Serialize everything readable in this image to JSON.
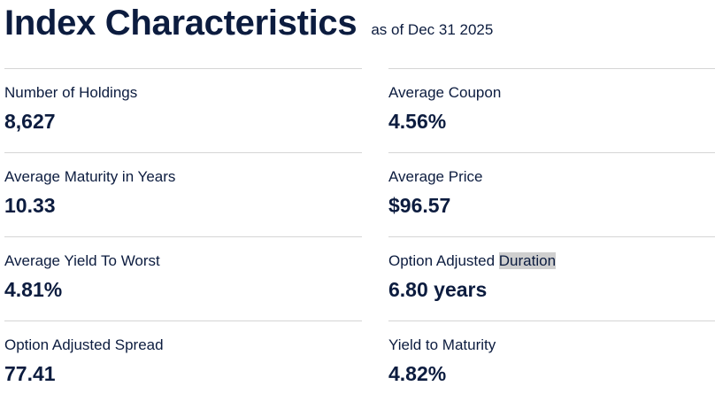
{
  "header": {
    "title": "Index Characteristics",
    "as_of": "as of Dec 31 2025"
  },
  "left": [
    {
      "label": "Number of Holdings",
      "value": "8,627"
    },
    {
      "label": "Average Maturity in Years",
      "value": "10.33"
    },
    {
      "label": "Average Yield To Worst",
      "value": "4.81%"
    },
    {
      "label": "Option Adjusted Spread",
      "value": "77.41"
    }
  ],
  "right": [
    {
      "label": "Average Coupon",
      "value": "4.56%"
    },
    {
      "label": "Average Price",
      "value": "$96.57"
    },
    {
      "label_prefix": "Option Adjusted ",
      "label_highlight": "Duration",
      "value": "6.80 years"
    },
    {
      "label": "Yield to Maturity",
      "value": "4.82%"
    }
  ],
  "colors": {
    "text": "#0c1c3f",
    "divider": "#d5d5d5",
    "highlight": "#cfcfcf"
  }
}
